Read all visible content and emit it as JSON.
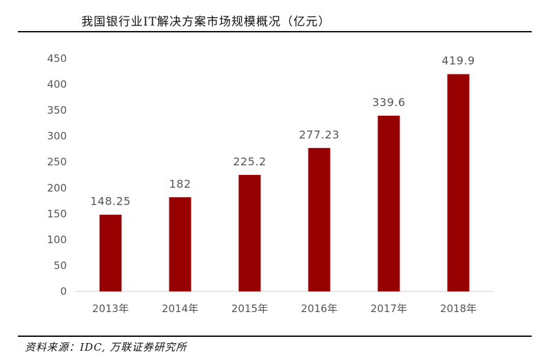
{
  "chart_data": {
    "type": "bar",
    "title": "我国银行业IT解决方案市场规模概况（亿元）",
    "categories": [
      "2013年",
      "2014年",
      "2015年",
      "2016年",
      "2017年",
      "2018年"
    ],
    "values": [
      148.25,
      182,
      225.2,
      277.23,
      339.6,
      419.9
    ],
    "data_labels": [
      "148.25",
      "182",
      "225.2",
      "277.23",
      "339.6",
      "419.9"
    ],
    "yticks": [
      0,
      50,
      100,
      150,
      200,
      250,
      300,
      350,
      400,
      450
    ],
    "ylim": [
      0,
      450
    ],
    "xlabel": "",
    "ylabel": "",
    "grid": false,
    "bar_color": "#960000",
    "source": "资料来源：IDC, 万联证券研究所"
  }
}
